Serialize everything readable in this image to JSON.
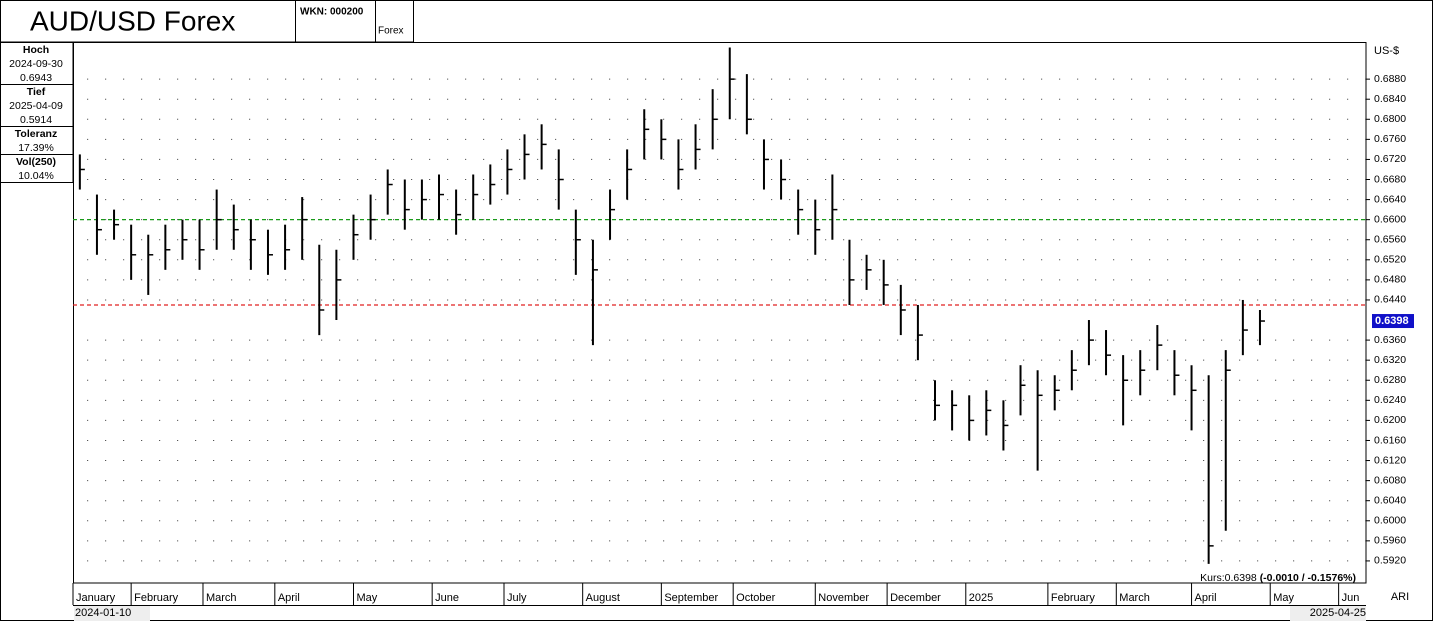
{
  "chart_data": {
    "type": "ohlc",
    "title": "AUD/USD Forex",
    "wkn": "WKN: 000200",
    "exchange": "Forex",
    "stats": [
      {
        "label": "Hoch",
        "lines": [
          "2024-09-30",
          "0.6943"
        ]
      },
      {
        "label": "Tief",
        "lines": [
          "2025-04-09",
          "0.5914"
        ]
      },
      {
        "label": "Toleranz",
        "lines": [
          "17.39%"
        ]
      },
      {
        "label": "Vol(250)",
        "lines": [
          "10.04%"
        ]
      }
    ],
    "y_axis_label": "US-$",
    "ylim": [
      0.5876,
      0.6954
    ],
    "yticks": [
      {
        "value": 0.592,
        "label": "0.5920"
      },
      {
        "value": 0.596,
        "label": "0.5960"
      },
      {
        "value": 0.6,
        "label": "0.6000"
      },
      {
        "value": 0.604,
        "label": "0.6040"
      },
      {
        "value": 0.608,
        "label": "0.6080"
      },
      {
        "value": 0.612,
        "label": "0.6120"
      },
      {
        "value": 0.616,
        "label": "0.6160"
      },
      {
        "value": 0.62,
        "label": "0.6200"
      },
      {
        "value": 0.624,
        "label": "0.6240"
      },
      {
        "value": 0.628,
        "label": "0.6280"
      },
      {
        "value": 0.632,
        "label": "0.6320"
      },
      {
        "value": 0.636,
        "label": "0.6360"
      },
      {
        "value": 0.644,
        "label": "0.6440"
      },
      {
        "value": 0.648,
        "label": "0.6480"
      },
      {
        "value": 0.652,
        "label": "0.6520"
      },
      {
        "value": 0.656,
        "label": "0.6560"
      },
      {
        "value": 0.66,
        "label": "0.6600"
      },
      {
        "value": 0.664,
        "label": "0.6640"
      },
      {
        "value": 0.668,
        "label": "0.6680"
      },
      {
        "value": 0.672,
        "label": "0.6720"
      },
      {
        "value": 0.676,
        "label": "0.6760"
      },
      {
        "value": 0.68,
        "label": "0.6800"
      },
      {
        "value": 0.684,
        "label": "0.6840"
      },
      {
        "value": 0.688,
        "label": "0.6880"
      }
    ],
    "grid": true,
    "xlim": [
      0,
      378
    ],
    "xticks": [
      {
        "value": 0,
        "label": "January"
      },
      {
        "value": 17,
        "label": "February"
      },
      {
        "value": 38,
        "label": "March"
      },
      {
        "value": 59,
        "label": "April"
      },
      {
        "value": 82,
        "label": "May"
      },
      {
        "value": 105,
        "label": "June"
      },
      {
        "value": 126,
        "label": "July"
      },
      {
        "value": 149,
        "label": "August"
      },
      {
        "value": 172,
        "label": "September"
      },
      {
        "value": 193,
        "label": "October"
      },
      {
        "value": 217,
        "label": "November"
      },
      {
        "value": 238,
        "label": "December"
      },
      {
        "value": 261,
        "label": "2025"
      },
      {
        "value": 285,
        "label": "February"
      },
      {
        "value": 305,
        "label": "March"
      },
      {
        "value": 327,
        "label": "April"
      },
      {
        "value": 350,
        "label": "May"
      },
      {
        "value": 370,
        "label": "Jun"
      }
    ],
    "start_date": "2024-01-10",
    "end_date": "2025-04-25",
    "corner_label": "ARI",
    "quote": "Kurs:0.6398",
    "change": "(-0.0010 / -0.1576%)",
    "last_price": {
      "value": 0.6398,
      "label": "0.6398"
    },
    "hlines": [
      {
        "value": 0.66,
        "color": "#1a9a1a"
      },
      {
        "value": 0.643,
        "color": "#e02020"
      }
    ],
    "color": "#000000",
    "x": [
      2,
      7,
      12,
      17,
      22,
      27,
      32,
      37,
      42,
      47,
      52,
      57,
      62,
      67,
      72,
      77,
      82,
      87,
      92,
      97,
      102,
      107,
      112,
      117,
      122,
      127,
      132,
      137,
      142,
      147,
      152,
      157,
      162,
      167,
      172,
      177,
      182,
      187,
      192,
      197,
      202,
      207,
      212,
      217,
      222,
      227,
      232,
      237,
      242,
      247,
      252,
      257,
      262,
      267,
      272,
      277,
      282,
      287,
      292,
      297,
      302,
      307,
      312,
      317,
      322,
      327,
      332,
      337,
      342,
      347
    ],
    "high": [
      0.673,
      0.665,
      0.662,
      0.659,
      0.657,
      0.659,
      0.66,
      0.66,
      0.666,
      0.663,
      0.66,
      0.658,
      0.659,
      0.6645,
      0.655,
      0.654,
      0.661,
      0.665,
      0.67,
      0.668,
      0.668,
      0.669,
      0.666,
      0.669,
      0.671,
      0.674,
      0.677,
      0.679,
      0.674,
      0.662,
      0.656,
      0.666,
      0.674,
      0.682,
      0.68,
      0.676,
      0.679,
      0.686,
      0.6943,
      0.689,
      0.676,
      0.672,
      0.666,
      0.664,
      0.669,
      0.656,
      0.653,
      0.652,
      0.647,
      0.643,
      0.628,
      0.626,
      0.625,
      0.626,
      0.624,
      0.631,
      0.63,
      0.629,
      0.634,
      0.64,
      0.638,
      0.633,
      0.634,
      0.639,
      0.634,
      0.631,
      0.629,
      0.634,
      0.644,
      0.642
    ],
    "low": [
      0.666,
      0.653,
      0.656,
      0.648,
      0.645,
      0.65,
      0.652,
      0.65,
      0.654,
      0.654,
      0.65,
      0.649,
      0.65,
      0.652,
      0.637,
      0.64,
      0.652,
      0.656,
      0.661,
      0.658,
      0.66,
      0.66,
      0.657,
      0.66,
      0.663,
      0.665,
      0.668,
      0.67,
      0.662,
      0.649,
      0.635,
      0.656,
      0.664,
      0.672,
      0.672,
      0.666,
      0.67,
      0.674,
      0.68,
      0.677,
      0.666,
      0.664,
      0.657,
      0.653,
      0.656,
      0.643,
      0.646,
      0.643,
      0.637,
      0.632,
      0.62,
      0.618,
      0.616,
      0.617,
      0.614,
      0.621,
      0.61,
      0.622,
      0.626,
      0.631,
      0.629,
      0.619,
      0.625,
      0.63,
      0.625,
      0.618,
      0.5914,
      0.598,
      0.633,
      0.635
    ],
    "close": [
      0.67,
      0.658,
      0.659,
      0.653,
      0.653,
      0.654,
      0.656,
      0.654,
      0.66,
      0.658,
      0.656,
      0.653,
      0.654,
      0.66,
      0.642,
      0.648,
      0.657,
      0.66,
      0.667,
      0.662,
      0.664,
      0.665,
      0.661,
      0.665,
      0.667,
      0.67,
      0.673,
      0.675,
      0.668,
      0.656,
      0.65,
      0.662,
      0.67,
      0.678,
      0.676,
      0.67,
      0.674,
      0.68,
      0.688,
      0.68,
      0.672,
      0.668,
      0.662,
      0.658,
      0.662,
      0.648,
      0.65,
      0.647,
      0.642,
      0.637,
      0.623,
      0.623,
      0.62,
      0.622,
      0.619,
      0.627,
      0.625,
      0.626,
      0.63,
      0.636,
      0.633,
      0.628,
      0.63,
      0.635,
      0.629,
      0.626,
      0.595,
      0.63,
      0.638,
      0.6398
    ]
  }
}
